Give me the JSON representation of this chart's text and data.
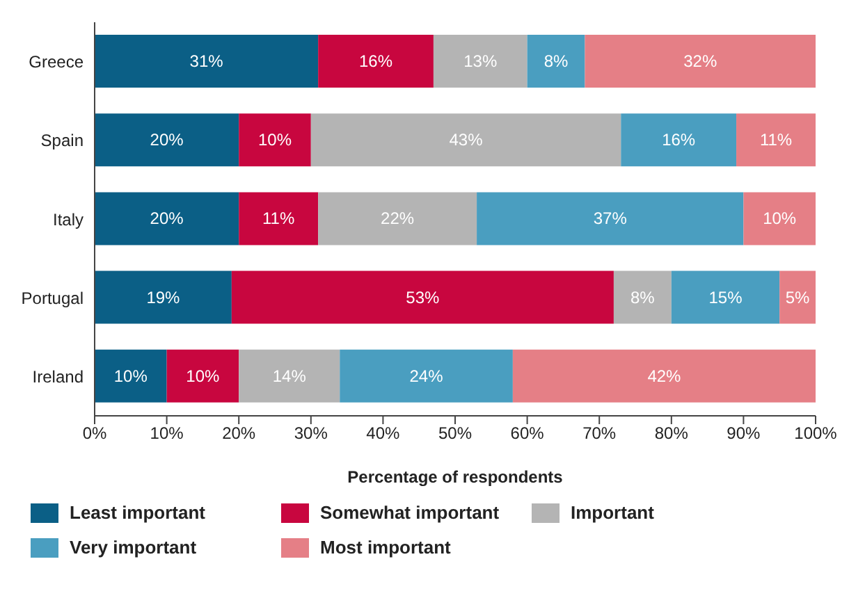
{
  "chart_data": {
    "type": "bar",
    "orientation": "horizontal",
    "stacked": true,
    "xlabel": "Percentage of respondents",
    "categories": [
      "Greece",
      "Spain",
      "Italy",
      "Portugal",
      "Ireland"
    ],
    "series": [
      {
        "name": "Least important",
        "color": "#0b5f86",
        "values": [
          31,
          20,
          20,
          19,
          10
        ],
        "value_labels": [
          "31%",
          "20%",
          "20%",
          "19%",
          "10%"
        ]
      },
      {
        "name": "Somewhat important",
        "color": "#c8063f",
        "values": [
          16,
          10,
          11,
          53,
          10
        ],
        "value_labels": [
          "16%",
          "10%",
          "11%",
          "53%",
          "10%"
        ]
      },
      {
        "name": "Important",
        "color": "#b4b4b4",
        "values": [
          13,
          43,
          22,
          8,
          14
        ],
        "value_labels": [
          "13%",
          "43%",
          "22%",
          "8%",
          "14%"
        ]
      },
      {
        "name": "Very important",
        "color": "#4a9ec0",
        "values": [
          8,
          16,
          37,
          15,
          24
        ],
        "value_labels": [
          "8%",
          "16%",
          "37%",
          "15%",
          "24%"
        ]
      },
      {
        "name": "Most important",
        "color": "#e57f86",
        "values": [
          32,
          11,
          10,
          5,
          42
        ],
        "value_labels": [
          "32%",
          "11%",
          "10%",
          "5%",
          "42%"
        ]
      }
    ],
    "xlim": [
      0,
      100
    ],
    "xticks": [
      {
        "value": 0,
        "label": "0%"
      },
      {
        "value": 10,
        "label": "10%"
      },
      {
        "value": 20,
        "label": "20%"
      },
      {
        "value": 30,
        "label": "30%"
      },
      {
        "value": 40,
        "label": "40%"
      },
      {
        "value": 50,
        "label": "50%"
      },
      {
        "value": 60,
        "label": "60%"
      },
      {
        "value": 70,
        "label": "70%"
      },
      {
        "value": 80,
        "label": "80%"
      },
      {
        "value": 90,
        "label": "90%"
      },
      {
        "value": 100,
        "label": "100%"
      }
    ],
    "legend": "bottom"
  }
}
